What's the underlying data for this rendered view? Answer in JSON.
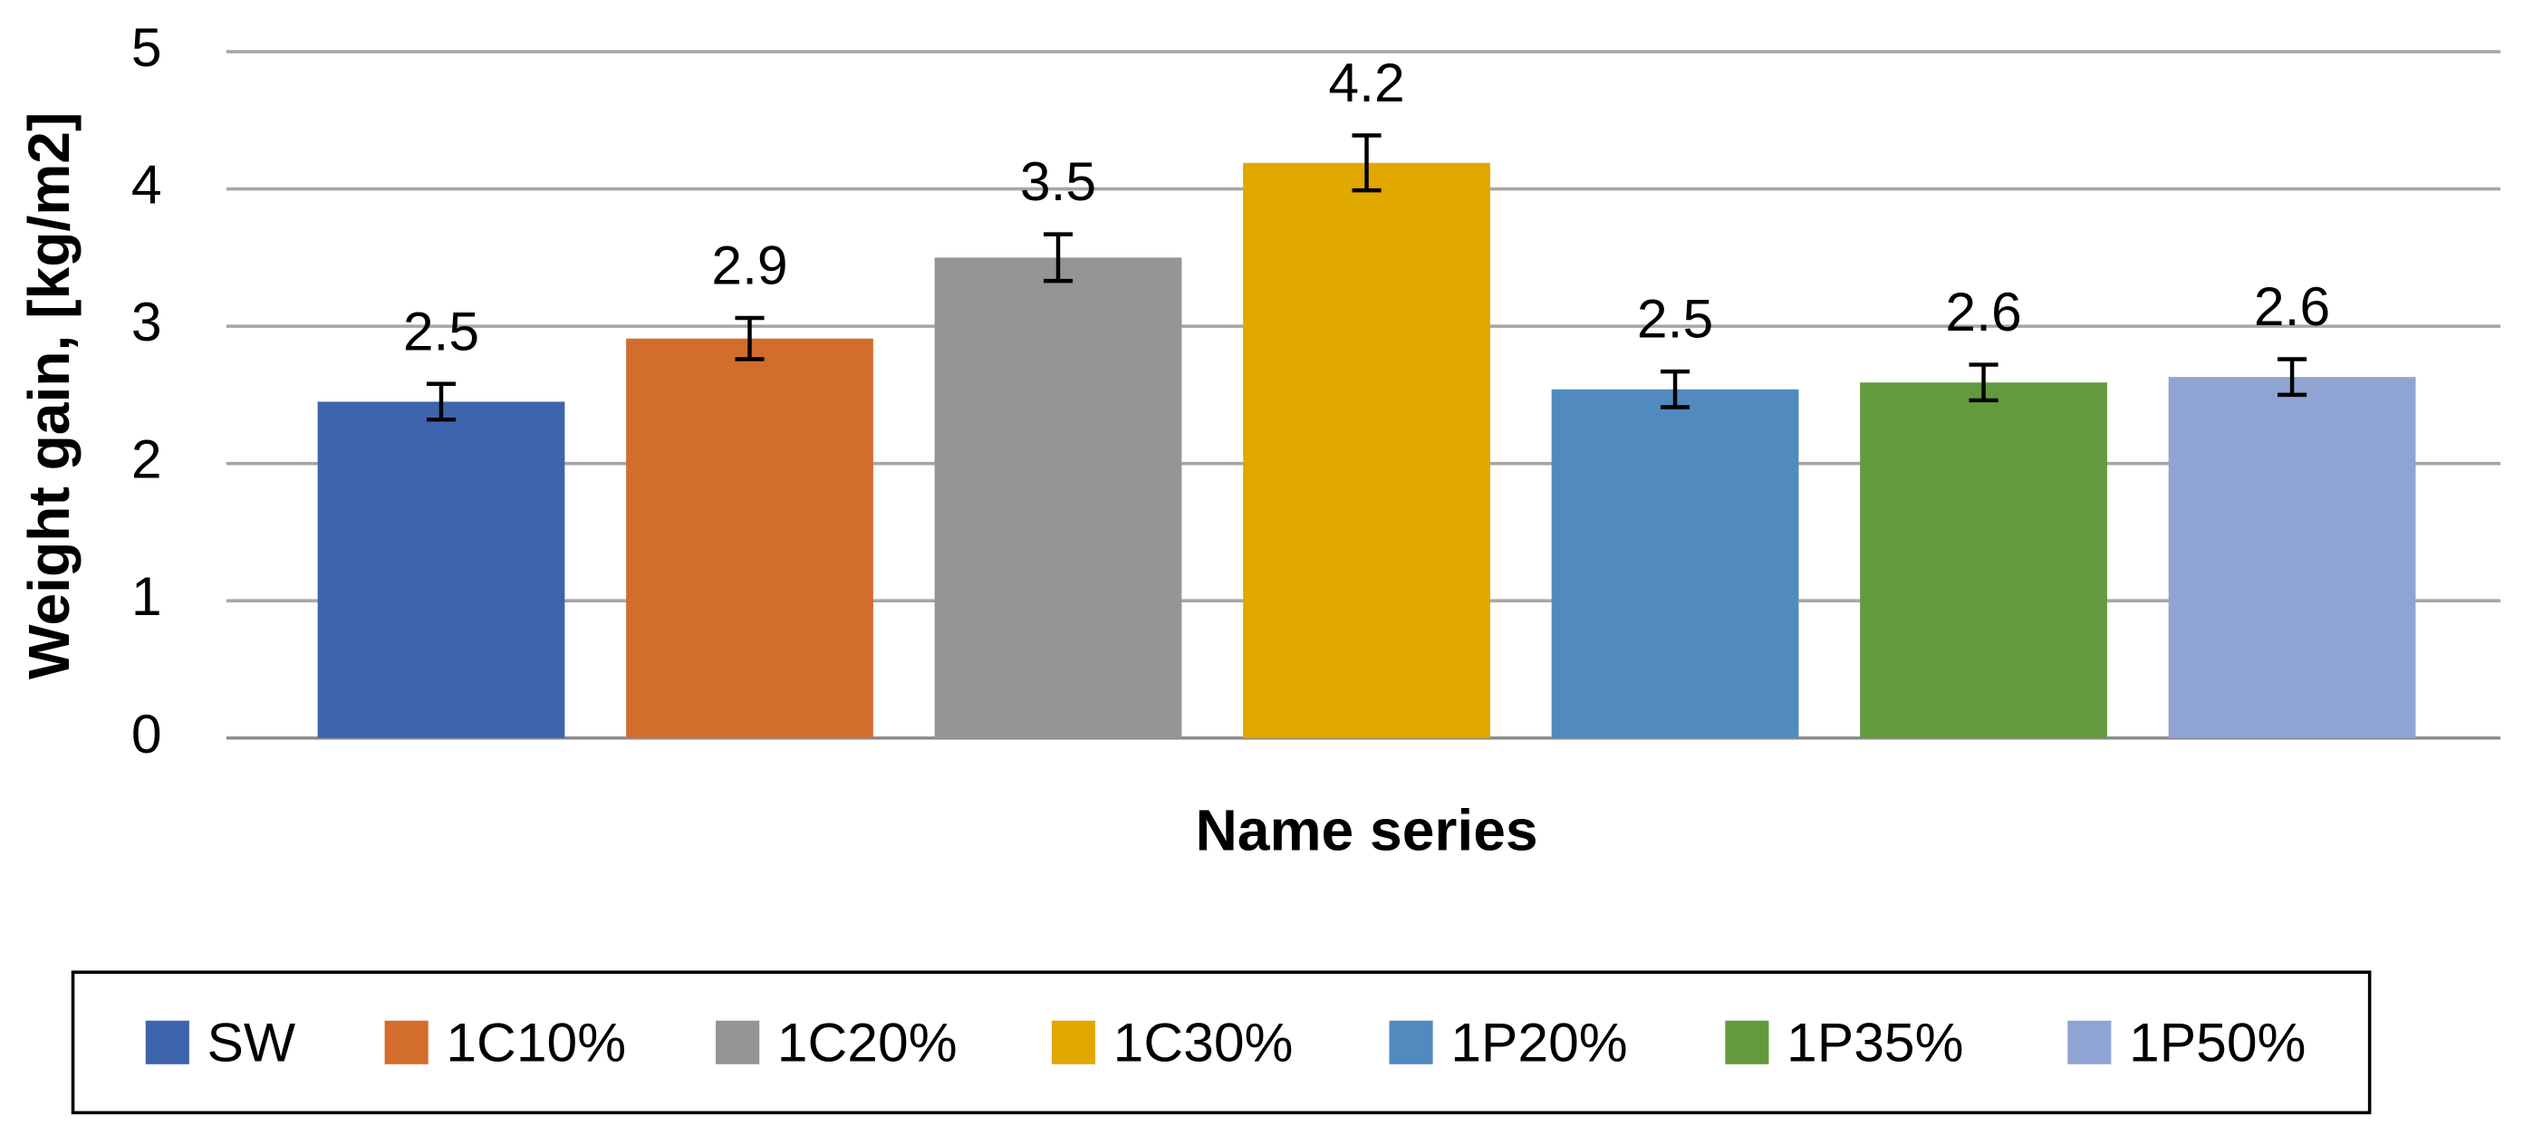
{
  "chart_data": {
    "type": "bar",
    "y_label": "Weight gain, [kg/m2]",
    "x_label": "Name series",
    "ylim": [
      0,
      5
    ],
    "yticks": [
      0,
      1,
      2,
      3,
      4,
      5
    ],
    "grid": true,
    "series": [
      {
        "name": "SW",
        "color": "#3d64ad",
        "values": [
          2.45
        ],
        "value_labels": [
          "2.5"
        ],
        "errors": [
          0.13
        ]
      },
      {
        "name": "1C10%",
        "color": "#d26d2d",
        "values": [
          2.91
        ],
        "value_labels": [
          "2.9"
        ],
        "errors": [
          0.15
        ]
      },
      {
        "name": "1C20%",
        "color": "#959595",
        "values": [
          3.5
        ],
        "value_labels": [
          "3.5"
        ],
        "errors": [
          0.17
        ]
      },
      {
        "name": "1C30%",
        "color": "#e1a800",
        "values": [
          4.19
        ],
        "value_labels": [
          "4.2"
        ],
        "errors": [
          0.2
        ]
      },
      {
        "name": "1P20%",
        "color": "#508abe",
        "values": [
          2.54
        ],
        "value_labels": [
          "2.5"
        ],
        "errors": [
          0.13
        ]
      },
      {
        "name": "1P35%",
        "color": "#649a3e",
        "values": [
          2.59
        ],
        "value_labels": [
          "2.6"
        ],
        "errors": [
          0.13
        ]
      },
      {
        "name": "1P50%",
        "color": "#90a4d4",
        "values": [
          2.63
        ],
        "value_labels": [
          "2.6"
        ],
        "errors": [
          0.13
        ]
      }
    ]
  }
}
